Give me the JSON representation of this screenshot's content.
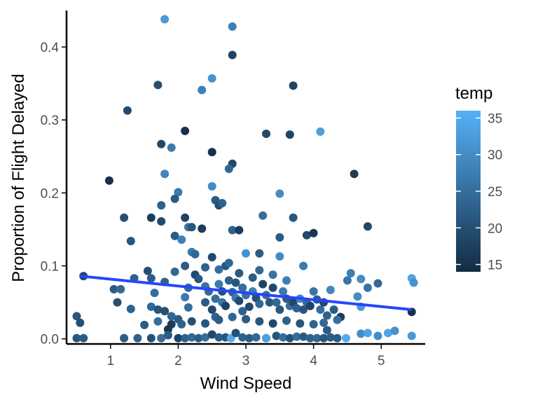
{
  "chart_data": {
    "type": "scatter",
    "xlabel": "Wind Speed",
    "ylabel": "Proportion of Flight Delayed",
    "xlim": [
      0.35,
      5.65
    ],
    "ylim": [
      -0.007,
      0.45
    ],
    "x_ticks": [
      1,
      2,
      3,
      4,
      5
    ],
    "y_ticks": [
      0.0,
      0.1,
      0.2,
      0.3,
      0.4
    ],
    "y_tick_labels": [
      "0.0",
      "0.1",
      "0.2",
      "0.3",
      "0.4"
    ],
    "grid": false,
    "legend": {
      "title": "temp",
      "position": "right",
      "ticks": [
        15,
        20,
        25,
        30,
        35
      ],
      "min": 14,
      "max": 36,
      "color_low": "#132B43",
      "color_high": "#56B1F7"
    },
    "trend_line": {
      "method": "linear",
      "color": "#2845ff",
      "x": [
        0.55,
        5.45
      ],
      "y": [
        0.086,
        0.04
      ]
    },
    "points": [
      [
        1.8,
        0.438,
        32
      ],
      [
        2.8,
        0.428,
        28
      ],
      [
        2.8,
        0.389,
        18
      ],
      [
        1.7,
        0.348,
        20
      ],
      [
        2.35,
        0.341,
        28
      ],
      [
        2.5,
        0.357,
        31
      ],
      [
        3.7,
        0.347,
        18
      ],
      [
        1.25,
        0.313,
        19
      ],
      [
        2.1,
        0.285,
        15
      ],
      [
        3.3,
        0.281,
        19
      ],
      [
        3.65,
        0.28,
        18
      ],
      [
        4.1,
        0.284,
        33
      ],
      [
        1.75,
        0.267,
        19
      ],
      [
        1.9,
        0.262,
        27
      ],
      [
        2.5,
        0.256,
        15
      ],
      [
        2.8,
        0.24,
        19
      ],
      [
        2.75,
        0.233,
        24
      ],
      [
        1.8,
        0.226,
        29
      ],
      [
        4.6,
        0.226,
        17
      ],
      [
        0.98,
        0.217,
        15
      ],
      [
        2.5,
        0.209,
        30
      ],
      [
        2.0,
        0.201,
        27
      ],
      [
        1.95,
        0.192,
        22
      ],
      [
        2.55,
        0.19,
        22
      ],
      [
        3.5,
        0.199,
        30
      ],
      [
        2.6,
        0.183,
        20
      ],
      [
        2.65,
        0.186,
        23
      ],
      [
        1.75,
        0.183,
        23
      ],
      [
        1.2,
        0.166,
        20
      ],
      [
        1.6,
        0.166,
        17
      ],
      [
        2.1,
        0.166,
        18
      ],
      [
        3.25,
        0.169,
        25
      ],
      [
        3.7,
        0.166,
        21
      ],
      [
        4.8,
        0.154,
        19
      ],
      [
        1.3,
        0.134,
        21
      ],
      [
        1.75,
        0.161,
        19
      ],
      [
        2.15,
        0.153,
        26
      ],
      [
        2.2,
        0.153,
        21
      ],
      [
        2.35,
        0.151,
        17
      ],
      [
        2.8,
        0.149,
        23
      ],
      [
        2.9,
        0.149,
        17
      ],
      [
        1.95,
        0.141,
        22
      ],
      [
        2.05,
        0.136,
        28
      ],
      [
        3.5,
        0.139,
        22
      ],
      [
        3.9,
        0.142,
        19
      ],
      [
        4.0,
        0.145,
        16
      ],
      [
        2.2,
        0.119,
        27
      ],
      [
        2.25,
        0.116,
        24
      ],
      [
        2.5,
        0.112,
        19
      ],
      [
        3.0,
        0.117,
        31
      ],
      [
        3.2,
        0.117,
        22
      ],
      [
        3.5,
        0.113,
        30
      ],
      [
        3.85,
        0.1,
        27
      ],
      [
        2.7,
        0.1,
        21
      ],
      [
        2.75,
        0.104,
        24
      ],
      [
        0.6,
        0.086,
        19
      ],
      [
        1.05,
        0.068,
        22
      ],
      [
        1.15,
        0.068,
        24
      ],
      [
        1.1,
        0.05,
        20
      ],
      [
        1.35,
        0.083,
        23
      ],
      [
        1.55,
        0.093,
        20
      ],
      [
        1.6,
        0.083,
        22
      ],
      [
        1.65,
        0.063,
        25
      ],
      [
        1.6,
        0.044,
        24
      ],
      [
        1.7,
        0.04,
        21
      ],
      [
        1.8,
        0.038,
        20
      ],
      [
        1.9,
        0.02,
        17
      ],
      [
        1.85,
        0.013,
        16
      ],
      [
        2.05,
        0.02,
        23
      ],
      [
        2.15,
        0.043,
        25
      ],
      [
        2.1,
        0.057,
        27
      ],
      [
        2.15,
        0.07,
        24
      ],
      [
        2.25,
        0.088,
        19
      ],
      [
        2.3,
        0.082,
        21
      ],
      [
        2.4,
        0.072,
        26
      ],
      [
        2.45,
        0.065,
        24
      ],
      [
        2.4,
        0.05,
        22
      ],
      [
        2.5,
        0.04,
        19
      ],
      [
        2.55,
        0.055,
        25
      ],
      [
        2.55,
        0.03,
        23
      ],
      [
        2.6,
        0.075,
        27
      ],
      [
        2.65,
        0.065,
        20
      ],
      [
        2.65,
        0.05,
        26
      ],
      [
        2.7,
        0.045,
        18
      ],
      [
        2.75,
        0.08,
        23
      ],
      [
        2.8,
        0.064,
        24
      ],
      [
        2.85,
        0.077,
        21
      ],
      [
        2.85,
        0.056,
        27
      ],
      [
        2.9,
        0.052,
        19
      ],
      [
        2.95,
        0.038,
        23
      ],
      [
        2.95,
        0.07,
        25
      ],
      [
        3.0,
        0.06,
        26
      ],
      [
        3.05,
        0.044,
        19
      ],
      [
        3.1,
        0.084,
        22
      ],
      [
        3.1,
        0.065,
        28
      ],
      [
        3.15,
        0.056,
        20
      ],
      [
        3.2,
        0.048,
        24
      ],
      [
        3.25,
        0.075,
        18
      ],
      [
        3.3,
        0.06,
        25
      ],
      [
        3.35,
        0.05,
        21
      ],
      [
        3.4,
        0.07,
        19
      ],
      [
        3.45,
        0.05,
        24
      ],
      [
        3.5,
        0.04,
        21
      ],
      [
        3.55,
        0.065,
        27
      ],
      [
        3.6,
        0.055,
        22
      ],
      [
        3.65,
        0.045,
        25
      ],
      [
        3.7,
        0.05,
        19
      ],
      [
        3.75,
        0.042,
        23
      ],
      [
        3.8,
        0.055,
        29
      ],
      [
        3.85,
        0.04,
        21
      ],
      [
        3.9,
        0.05,
        24
      ],
      [
        3.95,
        0.045,
        18
      ],
      [
        4.05,
        0.054,
        22
      ],
      [
        4.1,
        0.04,
        25
      ],
      [
        4.15,
        0.05,
        19
      ],
      [
        4.2,
        0.032,
        23
      ],
      [
        4.25,
        0.067,
        29
      ],
      [
        4.3,
        0.04,
        22
      ],
      [
        4.4,
        0.03,
        17
      ],
      [
        4.5,
        0.08,
        26
      ],
      [
        4.55,
        0.09,
        28
      ],
      [
        4.7,
        0.082,
        30
      ],
      [
        4.8,
        0.07,
        26
      ],
      [
        4.95,
        0.076,
        24
      ],
      [
        4.65,
        0.058,
        30
      ],
      [
        4.7,
        0.044,
        32
      ],
      [
        4.7,
        0.007,
        30
      ],
      [
        4.8,
        0.008,
        34
      ],
      [
        5.1,
        0.008,
        34
      ],
      [
        5.2,
        0.011,
        31
      ],
      [
        5.45,
        0.083,
        34
      ],
      [
        5.48,
        0.077,
        31
      ],
      [
        5.45,
        0.037,
        15
      ],
      [
        5.45,
        0.004,
        32
      ],
      [
        4.95,
        0.004,
        30
      ],
      [
        4.48,
        0.001,
        35
      ],
      [
        0.5,
        0.031,
        21
      ],
      [
        0.55,
        0.022,
        20
      ],
      [
        0.5,
        0.001,
        21
      ],
      [
        0.6,
        0.001,
        22
      ],
      [
        1.2,
        0.001,
        22
      ],
      [
        1.4,
        0.001,
        23
      ],
      [
        1.6,
        0.001,
        20
      ],
      [
        1.75,
        0.001,
        25
      ],
      [
        1.85,
        0.005,
        22
      ],
      [
        2.0,
        0.001,
        18
      ],
      [
        2.1,
        0.001,
        23
      ],
      [
        2.2,
        0.002,
        24
      ],
      [
        2.3,
        0.001,
        22
      ],
      [
        2.4,
        0.002,
        25
      ],
      [
        2.5,
        0.006,
        19
      ],
      [
        2.6,
        0.002,
        22
      ],
      [
        2.7,
        0.002,
        21
      ],
      [
        2.78,
        0.001,
        35
      ],
      [
        2.85,
        0.008,
        20
      ],
      [
        2.95,
        0.002,
        23
      ],
      [
        3.05,
        0.001,
        22
      ],
      [
        3.15,
        0.002,
        24
      ],
      [
        3.3,
        0.001,
        25
      ],
      [
        3.3,
        0.001,
        33
      ],
      [
        3.45,
        0.004,
        21
      ],
      [
        3.55,
        0.002,
        25
      ],
      [
        3.65,
        0.001,
        20
      ],
      [
        3.75,
        0.003,
        25
      ],
      [
        3.85,
        0.003,
        22
      ],
      [
        3.95,
        0.001,
        23
      ],
      [
        4.05,
        0.001,
        24
      ],
      [
        4.15,
        0.001,
        21
      ],
      [
        4.25,
        0.002,
        22
      ],
      [
        4.35,
        0.001,
        22
      ],
      [
        4.2,
        0.012,
        22
      ],
      [
        4.15,
        0.022,
        24
      ],
      [
        4.35,
        0.026,
        25
      ],
      [
        4.0,
        0.02,
        23
      ],
      [
        3.8,
        0.021,
        21
      ],
      [
        3.6,
        0.025,
        23
      ],
      [
        3.4,
        0.021,
        19
      ],
      [
        3.2,
        0.024,
        21
      ],
      [
        3.0,
        0.027,
        22
      ],
      [
        2.8,
        0.03,
        24
      ],
      [
        2.6,
        0.026,
        22
      ],
      [
        2.4,
        0.021,
        21
      ],
      [
        2.2,
        0.024,
        20
      ],
      [
        2.0,
        0.027,
        22
      ],
      [
        1.9,
        0.031,
        24
      ],
      [
        1.7,
        0.024,
        25
      ],
      [
        1.5,
        0.019,
        22
      ],
      [
        1.3,
        0.041,
        23
      ],
      [
        4.0,
        0.065,
        26
      ],
      [
        3.6,
        0.08,
        28
      ],
      [
        3.4,
        0.088,
        26
      ],
      [
        3.2,
        0.094,
        24
      ],
      [
        2.9,
        0.09,
        22
      ],
      [
        2.6,
        0.095,
        25
      ],
      [
        2.4,
        0.098,
        23
      ],
      [
        2.1,
        0.1,
        22
      ],
      [
        1.95,
        0.092,
        24
      ],
      [
        1.8,
        0.078,
        23
      ]
    ]
  }
}
